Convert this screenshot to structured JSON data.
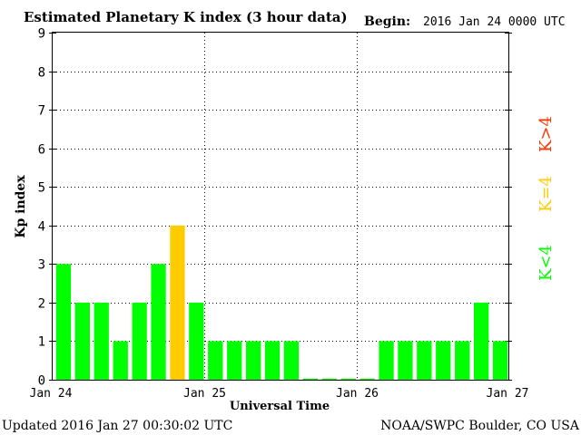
{
  "header": {
    "title": "Estimated Planetary K index (3 hour data)",
    "begin_label": "Begin:",
    "begin_value": "2016 Jan 24 0000 UTC"
  },
  "footer": {
    "updated": "Updated 2016 Jan 27 00:30:02 UTC",
    "credit": "NOAA/SWPC Boulder, CO USA"
  },
  "legend": {
    "low": "K<4",
    "mid": "K=4",
    "high": "K>4"
  },
  "colors": {
    "low": "#00ff00",
    "mid": "#ffcc00",
    "high": "#ff3300",
    "grid": "#000000",
    "axis": "#000000"
  },
  "chart_data": {
    "type": "bar",
    "ylabel": "Kp index",
    "xlabel": "Universal Time",
    "ylim": [
      0,
      9
    ],
    "yticks": [
      0,
      1,
      2,
      3,
      4,
      5,
      6,
      7,
      8,
      9
    ],
    "xticks": [
      "Jan 24",
      "Jan 25",
      "Jan 26",
      "Jan 27"
    ],
    "values": [
      3,
      2,
      2,
      1,
      2,
      3,
      4,
      2,
      1,
      1,
      1,
      1,
      1,
      0.03,
      0.03,
      0.03,
      0.03,
      1,
      1,
      1,
      1,
      1,
      2,
      1
    ],
    "grid": "dotted, vertical at day boundaries and horizontal at each integer"
  }
}
